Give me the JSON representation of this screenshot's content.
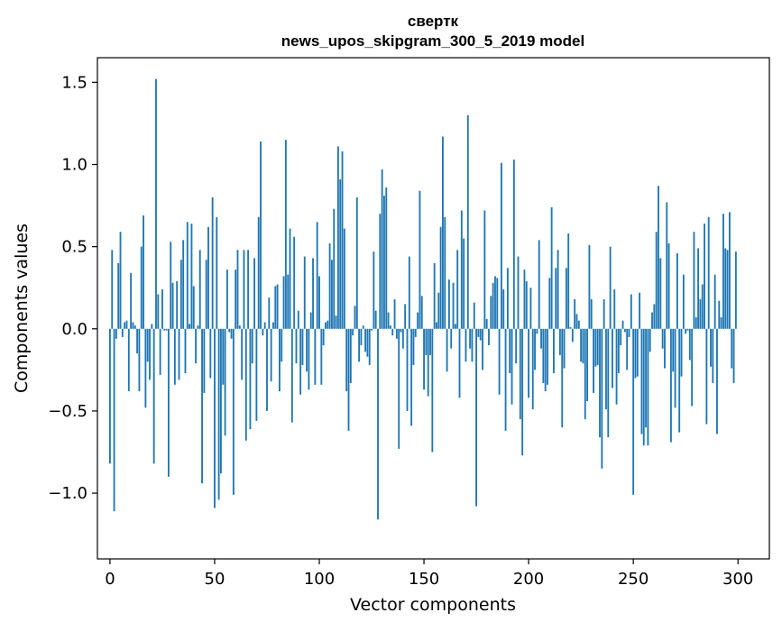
{
  "chart_data": {
    "type": "bar",
    "title_line1": "свертк",
    "title_line2": "news_upos_skipgram_300_5_2019 model",
    "xlabel": "Vector components",
    "ylabel": "Components values",
    "xlim": [
      -6,
      315
    ],
    "ylim": [
      -1.4,
      1.65
    ],
    "xticks": [
      0,
      50,
      100,
      150,
      200,
      250,
      300
    ],
    "xtick_labels": [
      "0",
      "50",
      "100",
      "150",
      "200",
      "250",
      "300"
    ],
    "yticks": [
      -1.0,
      -0.5,
      0.0,
      0.5,
      1.0,
      1.5
    ],
    "ytick_labels": [
      "−1.0",
      "−0.5",
      "0.0",
      "0.5",
      "1.0",
      "1.5"
    ],
    "bar_color": "#1f77b4",
    "grid": false,
    "values": [
      -0.82,
      0.48,
      -1.11,
      -0.06,
      0.4,
      0.59,
      -0.05,
      0.04,
      0.05,
      -0.38,
      0.34,
      0.04,
      0.02,
      -0.15,
      -0.38,
      0.5,
      0.69,
      -0.48,
      -0.2,
      -0.31,
      0.03,
      -0.82,
      1.52,
      0.21,
      -0.28,
      0.24,
      -0.01,
      -0.01,
      -0.9,
      0.53,
      0.28,
      -0.34,
      0.29,
      -0.31,
      0.42,
      0.54,
      -0.27,
      0.65,
      0.03,
      0.64,
      0.26,
      -0.21,
      0.02,
      0.48,
      -0.94,
      -0.39,
      0.42,
      0.62,
      -0.3,
      0.8,
      -1.09,
      0.68,
      -1.04,
      -0.88,
      -0.34,
      -0.65,
      0.36,
      -0.02,
      -0.06,
      -1.01,
      0.36,
      0.48,
      0.02,
      -0.31,
      0.48,
      -0.68,
      0.48,
      -0.61,
      -0.21,
      0.43,
      -0.56,
      0.68,
      1.14,
      -0.04,
      0.04,
      -0.5,
      0.19,
      -0.32,
      0.04,
      0.26,
      0.27,
      -0.38,
      -0.2,
      0.32,
      1.15,
      0.33,
      0.61,
      -0.57,
      0.56,
      -0.21,
      0.11,
      -0.4,
      -0.22,
      0.44,
      -0.26,
      -0.37,
      0.1,
      0.43,
      -0.34,
      0.65,
      0.32,
      -0.34,
      -0.1,
      0.04,
      0.05,
      0.52,
      0.42,
      0.73,
      0.08,
      1.11,
      0.91,
      1.08,
      0.61,
      -0.38,
      -0.62,
      -0.33,
      -0.04,
      0.14,
      0.8,
      -0.2,
      -0.1,
      0.02,
      -0.14,
      -0.17,
      -0.22,
      -0.01,
      0.47,
      0.11,
      -1.16,
      0.7,
      0.97,
      0.81,
      0.86,
      0.1,
      0.02,
      -0.04,
      0.18,
      -0.06,
      -0.73,
      -0.02,
      -0.12,
      0.15,
      -0.5,
      0.44,
      -0.59,
      -0.22,
      -0.05,
      0.1,
      0.84,
      0.2,
      -0.37,
      -0.16,
      -0.41,
      -0.16,
      -0.75,
      0.4,
      0.04,
      0.22,
      0.62,
      1.17,
      0.68,
      -0.26,
      0.3,
      -0.12,
      0.28,
      0.03,
      0.48,
      -0.42,
      0.72,
      0.55,
      -0.2,
      1.3,
      -0.12,
      -0.2,
      0.16,
      -1.08,
      -0.05,
      -0.07,
      -0.25,
      0.72,
      0.06,
      -0.1,
      0.2,
      0.28,
      0.32,
      0.31,
      -0.4,
      1.01,
      0.24,
      -0.62,
      0.37,
      -0.27,
      -0.46,
      1.03,
      -0.21,
      0.44,
      -0.55,
      -0.77,
      0.36,
      0.29,
      -0.42,
      0.25,
      -0.49,
      -0.25,
      -0.03,
      0.54,
      -0.12,
      -0.33,
      -0.38,
      -0.34,
      0.31,
      0.74,
      -0.27,
      0.37,
      0.48,
      -0.16,
      -0.6,
      -0.24,
      0.37,
      0.58,
      0.01,
      -0.08,
      0.18,
      0.09,
      0.05,
      -0.2,
      -0.21,
      -0.55,
      -0.44,
      0.51,
      0.18,
      -0.39,
      -0.23,
      -0.22,
      -0.66,
      -0.85,
      0.18,
      -0.49,
      -0.66,
      0.5,
      -0.36,
      0.24,
      -0.46,
      -0.27,
      -0.1,
      0.05,
      -0.02,
      -0.25,
      -0.05,
      0.21,
      -1.01,
      -0.3,
      -0.29,
      0.22,
      -0.64,
      -0.71,
      -0.6,
      -0.71,
      -0.14,
      0.1,
      0.15,
      0.59,
      0.87,
      0.43,
      -0.12,
      -0.24,
      0.77,
      0.52,
      -0.69,
      -0.26,
      -0.48,
      0.46,
      -0.63,
      -0.29,
      0.33,
      -0.03,
      -0.01,
      -0.19,
      -0.47,
      0.59,
      0.07,
      0.49,
      0.18,
      0.27,
      0.64,
      -0.58,
      0.68,
      -0.23,
      -0.33,
      0.33,
      -0.64,
      0.17,
      0.07,
      0.7,
      0.49,
      0.48,
      0.71,
      -0.24,
      -0.33,
      0.47
    ]
  }
}
